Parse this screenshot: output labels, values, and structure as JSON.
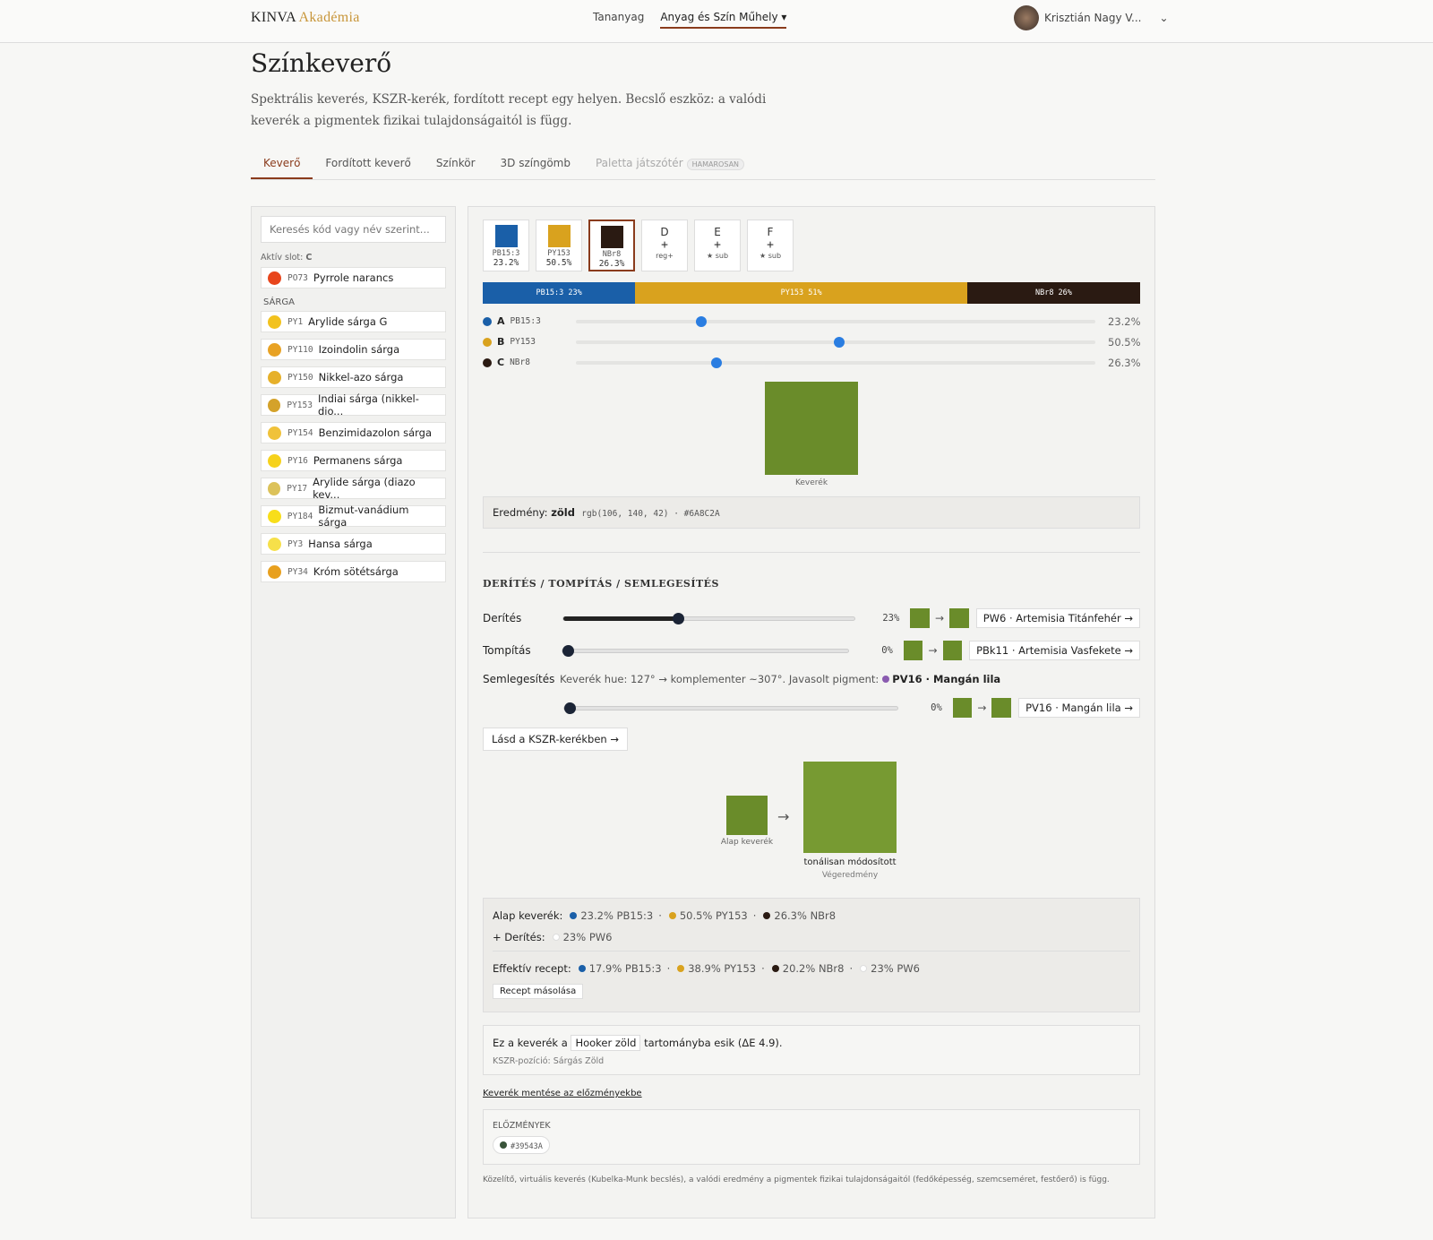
{
  "header": {
    "logo": "KINVA",
    "logo_accent": "Akadémia",
    "nav": [
      "Tananyag",
      "Anyag és Szín Műhely ▾"
    ],
    "user": "Krisztián Nagy V..."
  },
  "page": {
    "title": "Színkeverő",
    "subtitle_1": "Spektrális keverés, KSZR-kerék, fordított recept egy helyen. Becslő eszköz: a valódi",
    "subtitle_2": "keverék a pigmentek fizikai tulajdonságaitól is függ."
  },
  "tabs": [
    {
      "label": "Keverő"
    },
    {
      "label": "Fordított keverő"
    },
    {
      "label": "Színkör"
    },
    {
      "label": "3D színgömb"
    },
    {
      "label": "Paletta játszótér",
      "badge": "HAMAROSAN"
    }
  ],
  "sidebar": {
    "search_placeholder": "Keresés kód vagy név szerint...",
    "active_slot_label": "Aktív slot:",
    "active_slot": "C",
    "pinned": {
      "code": "PO73",
      "name": "Pyrrole narancs",
      "color": "#e8451c"
    },
    "group": "SÁRGA",
    "pigments": [
      {
        "code": "PY1",
        "name": "Arylide sárga G",
        "color": "#f2c21e"
      },
      {
        "code": "PY110",
        "name": "Izoindolin sárga",
        "color": "#e8a224"
      },
      {
        "code": "PY150",
        "name": "Nikkel-azo sárga",
        "color": "#e6b02a"
      },
      {
        "code": "PY153",
        "name": "Indiai sárga (nikkel-dio...",
        "color": "#d4a22a"
      },
      {
        "code": "PY154",
        "name": "Benzimidazolon sárga",
        "color": "#f0c23a"
      },
      {
        "code": "PY16",
        "name": "Permanens sárga",
        "color": "#f6d21c"
      },
      {
        "code": "PY17",
        "name": "Arylide sárga (diazo kev...",
        "color": "#dcc25a"
      },
      {
        "code": "PY184",
        "name": "Bizmut-vanádium sárga",
        "color": "#f8de1a"
      },
      {
        "code": "PY3",
        "name": "Hansa sárga",
        "color": "#f6e04a"
      },
      {
        "code": "PY34",
        "name": "Króm sötétsárga",
        "color": "#e8a01e"
      }
    ]
  },
  "mixer": {
    "slots": [
      {
        "code": "PB15:3",
        "pct": "23.2%"
      },
      {
        "code": "PY153",
        "pct": "50.5%"
      },
      {
        "code": "NBr8",
        "pct": "26.3%"
      },
      {
        "letter": "D",
        "plus": "+",
        "sub": "reg+"
      },
      {
        "letter": "E",
        "plus": "+",
        "sub": "★ sub"
      },
      {
        "letter": "F",
        "plus": "+",
        "sub": "★ sub"
      }
    ],
    "bar": [
      "PB15:3 23%",
      "PY153 51%",
      "NBr8 26%"
    ],
    "sliders": [
      {
        "letter": "A",
        "code": "PB15:3",
        "value": "23.2%"
      },
      {
        "letter": "B",
        "code": "PY153",
        "value": "50.5%"
      },
      {
        "letter": "C",
        "code": "NBr8",
        "value": "26.3%"
      }
    ],
    "swatch_label": "Keverék",
    "result_label": "Eredmény:",
    "result_name": "zöld",
    "result_code": "rgb(106, 140, 42) · #6A8C2A"
  },
  "adjust": {
    "heading": "DERÍTÉS / TOMPÍTÁS / SEMLEGESÍTÉS",
    "tint": {
      "label": "Derítés",
      "value": "23%",
      "pigment": "PW6 · Artemisia Titánfehér →"
    },
    "tone": {
      "label": "Tompítás",
      "value": "0%",
      "pigment": "PBk11 · Artemisia Vasfekete →"
    },
    "neutral": {
      "label": "Semlegesítés",
      "info": "Keverék hue: 127° → komplementer ~307°. Javasolt pigment:",
      "suggest": "PV16 · Mangán lila",
      "value": "0%",
      "pigment": "PV16 · Mangán lila →"
    },
    "wheel_button": "Lásd a KSZR-kerékben →",
    "base_label": "Alap keverék",
    "final_name": "tonálisan módosított",
    "final_label": "Végeredmény"
  },
  "recipe": {
    "base_label": "Alap keverék:",
    "base": [
      "23.2% PB15:3",
      "50.5% PY153",
      "26.3% NBr8"
    ],
    "tint_label": "+ Derítés:",
    "tint": "23% PW6",
    "effective_label": "Effektív recept:",
    "effective": [
      "17.9% PB15:3",
      "38.9% PY153",
      "20.2% NBr8",
      "23% PW6"
    ],
    "copy": "Recept másolása"
  },
  "range": {
    "pre": "Ez a keverék a",
    "name": "Hooker zöld",
    "post": "tartományba esik (ΔE 4.9).",
    "position": "KSZR-pozíció: Sárgás Zöld"
  },
  "save_link": "Keverék mentése az előzményekbe",
  "history": {
    "title": "ELŐZMÉNYEK",
    "items": [
      "#39543A"
    ]
  },
  "footnote": "Közelítő, virtuális keverés (Kubelka-Munk becslés), a valódi eredmény a pigmentek fizikai tulajdonságaitól (fedőképesség, szemcseméret, festőerő) is függ."
}
